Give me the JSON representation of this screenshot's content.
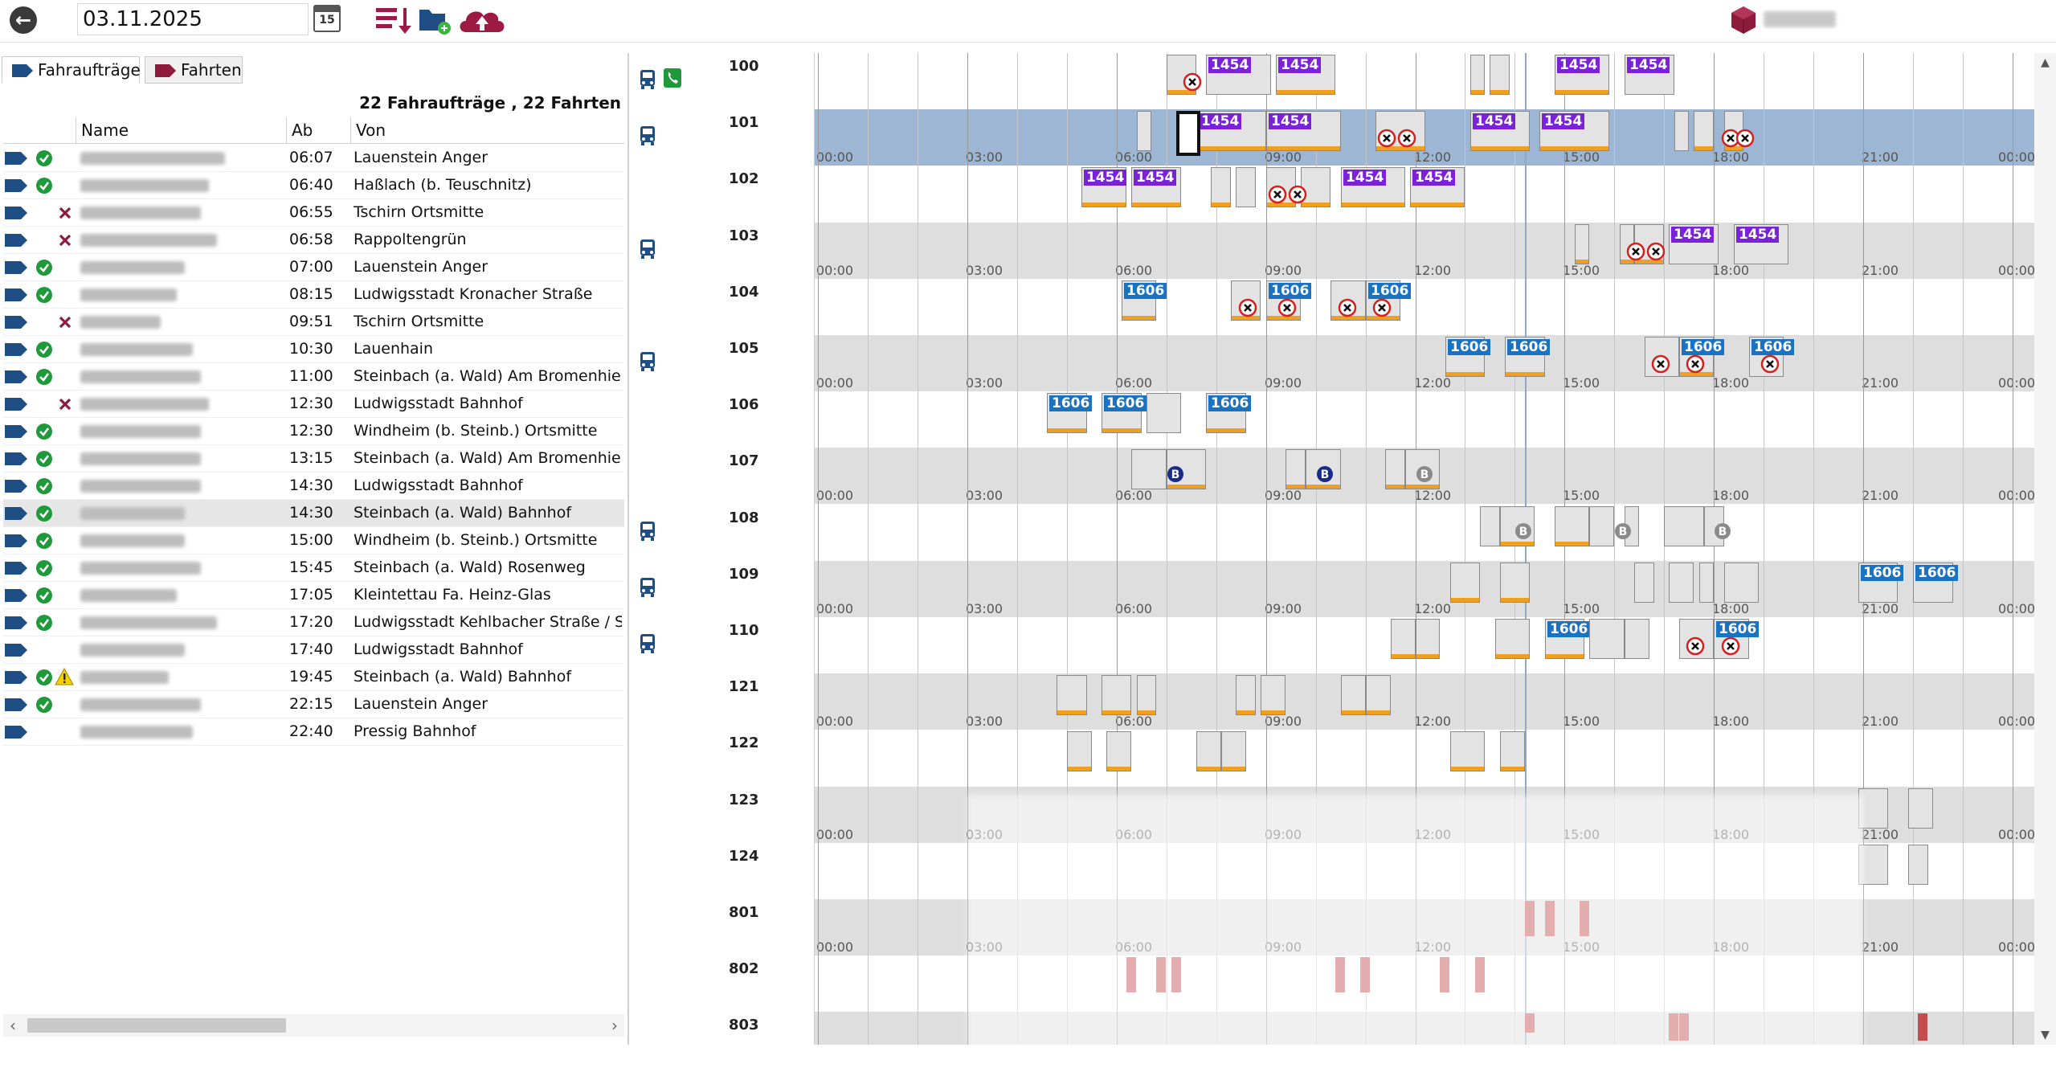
{
  "toolbar": {
    "date": "03.11.2025",
    "calendar_day": "15",
    "icons": [
      "back-arrow-icon",
      "calendar-icon",
      "sort-list-icon",
      "new-folder-icon",
      "cloud-upload-icon",
      "cube-logo-icon"
    ]
  },
  "tabs": [
    {
      "label": "Fahraufträge",
      "active": true
    },
    {
      "label": "Fahrten",
      "active": false
    }
  ],
  "summary": "22 Fahraufträge , 22 Fahrten",
  "columns": {
    "name": "Name",
    "ab": "Ab",
    "von": "Von"
  },
  "rows": [
    {
      "status": "ok",
      "warn": false,
      "ab": "06:07",
      "von": "Lauenstein Anger"
    },
    {
      "status": "ok",
      "warn": false,
      "ab": "06:40",
      "von": "Haßlach (b. Teuschnitz)"
    },
    {
      "status": "x",
      "warn": false,
      "ab": "06:55",
      "von": "Tschirn Ortsmitte"
    },
    {
      "status": "x",
      "warn": false,
      "ab": "06:58",
      "von": "Rappoltengrün"
    },
    {
      "status": "ok",
      "warn": false,
      "ab": "07:00",
      "von": "Lauenstein Anger"
    },
    {
      "status": "ok",
      "warn": false,
      "ab": "08:15",
      "von": "Ludwigsstadt Kronacher Straße"
    },
    {
      "status": "x",
      "warn": false,
      "ab": "09:51",
      "von": "Tschirn Ortsmitte"
    },
    {
      "status": "ok",
      "warn": false,
      "ab": "10:30",
      "von": "Lauenhain"
    },
    {
      "status": "ok",
      "warn": false,
      "ab": "11:00",
      "von": "Steinbach (a. Wald) Am Bromenhieb"
    },
    {
      "status": "x",
      "warn": false,
      "ab": "12:30",
      "von": "Ludwigsstadt Bahnhof"
    },
    {
      "status": "ok",
      "warn": false,
      "ab": "12:30",
      "von": "Windheim (b. Steinb.) Ortsmitte"
    },
    {
      "status": "ok",
      "warn": false,
      "ab": "13:15",
      "von": "Steinbach (a. Wald) Am Bromenhieb"
    },
    {
      "status": "ok",
      "warn": false,
      "ab": "14:30",
      "von": "Ludwigsstadt Bahnhof"
    },
    {
      "status": "ok",
      "warn": false,
      "ab": "14:30",
      "von": "Steinbach (a. Wald) Bahnhof",
      "selected": true
    },
    {
      "status": "ok",
      "warn": false,
      "ab": "15:00",
      "von": "Windheim (b. Steinb.) Ortsmitte"
    },
    {
      "status": "ok",
      "warn": false,
      "ab": "15:45",
      "von": "Steinbach (a. Wald) Rosenweg"
    },
    {
      "status": "ok",
      "warn": false,
      "ab": "17:05",
      "von": "Kleintettau Fa. Heinz-Glas"
    },
    {
      "status": "ok",
      "warn": false,
      "ab": "17:20",
      "von": "Ludwigsstadt Kehlbacher Straße / Sp"
    },
    {
      "status": "none",
      "warn": false,
      "ab": "17:40",
      "von": "Ludwigsstadt Bahnhof"
    },
    {
      "status": "ok",
      "warn": true,
      "ab": "19:45",
      "von": "Steinbach (a. Wald) Bahnhof"
    },
    {
      "status": "ok",
      "warn": false,
      "ab": "22:15",
      "von": "Lauenstein Anger"
    },
    {
      "status": "none",
      "warn": false,
      "ab": "22:40",
      "von": "Pressig Bahnhof"
    }
  ],
  "vehicles": [
    "100",
    "101",
    "102",
    "103",
    "104",
    "105",
    "106",
    "107",
    "108",
    "109",
    "110",
    "121",
    "122",
    "123",
    "124",
    "801",
    "802",
    "803"
  ],
  "time_ticks": [
    "00:00",
    "03:00",
    "06:00",
    "09:00",
    "12:00",
    "15:00",
    "18:00",
    "21:00",
    "00:00"
  ],
  "badges": {
    "purple": "1454",
    "blue": "1606",
    "b": "B"
  },
  "colors": {
    "purple": "#7a22d8",
    "blue": "#1a72c2",
    "orange": "#f0a020",
    "red": "#c64d4d",
    "selected_lane": "#9cb6d4"
  }
}
